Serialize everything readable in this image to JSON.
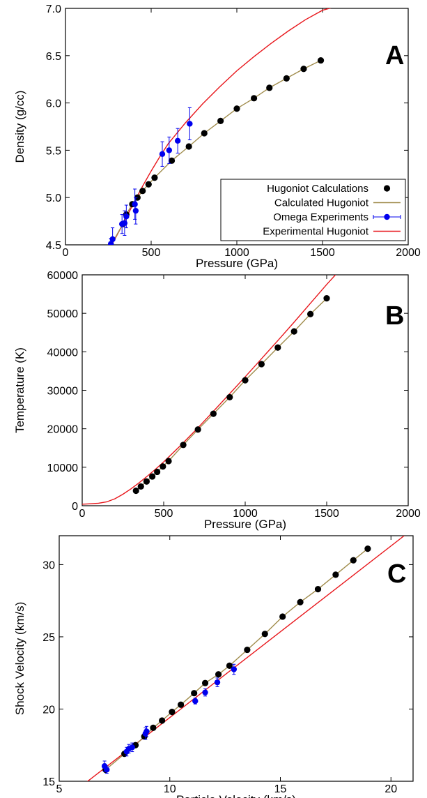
{
  "chart_data": [
    {
      "type": "scatter",
      "panel_label": "A",
      "xlabel": "Pressure (GPa)",
      "ylabel": "Density (g/cc)",
      "xlim": [
        0,
        2000
      ],
      "ylim": [
        4.5,
        7.0
      ],
      "xticks": [
        "0",
        "500",
        "1000",
        "1500",
        "2000"
      ],
      "yticks": [
        "4.5",
        "5.0",
        "5.5",
        "6.0",
        "6.5",
        "7.0"
      ],
      "legend_position": "lower-right",
      "series": [
        {
          "name": "Hugoniot Calculations",
          "style": "markers",
          "color": "#000000",
          "x": [
            335,
            355,
            390,
            420,
            450,
            485,
            520,
            620,
            720,
            810,
            905,
            1000,
            1100,
            1190,
            1290,
            1390,
            1490
          ],
          "y": [
            4.72,
            4.82,
            4.93,
            5.0,
            5.07,
            5.14,
            5.21,
            5.39,
            5.54,
            5.68,
            5.81,
            5.94,
            6.05,
            6.16,
            6.26,
            6.36,
            6.45
          ]
        },
        {
          "name": "Calculated Hugoniot",
          "style": "line",
          "color": "#a08c4c",
          "x": [
            270,
            335,
            355,
            390,
            420,
            450,
            485,
            520,
            620,
            720,
            810,
            905,
            1000,
            1100,
            1190,
            1290,
            1390,
            1490
          ],
          "y": [
            4.51,
            4.72,
            4.82,
            4.93,
            5.0,
            5.07,
            5.14,
            5.21,
            5.39,
            5.54,
            5.68,
            5.81,
            5.94,
            6.05,
            6.16,
            6.26,
            6.36,
            6.45
          ]
        },
        {
          "name": "Omega Experiments",
          "style": "errorbar",
          "color": "#0000ee",
          "x": [
            265,
            275,
            330,
            345,
            355,
            405,
            410,
            565,
            605,
            655,
            725
          ],
          "y": [
            4.51,
            4.56,
            4.72,
            4.73,
            4.8,
            4.93,
            4.86,
            5.46,
            5.5,
            5.6,
            5.78
          ],
          "yerr": [
            0.06,
            0.12,
            0.1,
            0.13,
            0.12,
            0.16,
            0.14,
            0.13,
            0.14,
            0.13,
            0.17
          ]
        },
        {
          "name": "Experimental Hugoniot",
          "style": "line",
          "color": "#e8161b",
          "x": [
            270,
            300,
            350,
            400,
            450,
            500,
            550,
            600,
            700,
            800,
            900,
            1000,
            1100,
            1200,
            1300,
            1400,
            1500,
            1580
          ],
          "y": [
            4.5,
            4.6,
            4.77,
            4.95,
            5.12,
            5.28,
            5.43,
            5.57,
            5.79,
            5.99,
            6.17,
            6.34,
            6.49,
            6.63,
            6.76,
            6.88,
            6.98,
            7.02
          ]
        }
      ]
    },
    {
      "type": "scatter",
      "panel_label": "B",
      "xlabel": "Pressure (GPa)",
      "ylabel": "Temperature (K)",
      "xlim": [
        0,
        2000
      ],
      "ylim": [
        0,
        60000
      ],
      "xticks": [
        "0",
        "500",
        "1000",
        "1500",
        "2000"
      ],
      "yticks": [
        "0",
        "10000",
        "20000",
        "30000",
        "40000",
        "50000",
        "60000"
      ],
      "series": [
        {
          "name": "Hugoniot Calculations",
          "style": "markers",
          "color": "#000000",
          "x": [
            330,
            360,
            395,
            430,
            460,
            495,
            530,
            620,
            710,
            805,
            905,
            1000,
            1100,
            1200,
            1300,
            1400,
            1500
          ],
          "y": [
            3900,
            5000,
            6300,
            7600,
            8800,
            10200,
            11600,
            15800,
            19800,
            23900,
            28200,
            32600,
            36800,
            41100,
            45300,
            49800,
            53900
          ]
        },
        {
          "name": "Calculated Hugoniot",
          "style": "line",
          "color": "#a08c4c",
          "x": [
            330,
            360,
            395,
            430,
            460,
            495,
            530,
            620,
            710,
            805,
            905,
            1000,
            1100,
            1200,
            1300,
            1400,
            1500
          ],
          "y": [
            3900,
            5000,
            6300,
            7600,
            8800,
            10200,
            11600,
            15800,
            19800,
            23900,
            28200,
            32600,
            36800,
            41100,
            45300,
            49800,
            53900
          ]
        },
        {
          "name": "Experimental Hugoniot",
          "style": "line",
          "color": "#e8161b",
          "x": [
            0,
            50,
            100,
            150,
            200,
            250,
            300,
            350,
            400,
            450,
            500,
            600,
            700,
            800,
            900,
            1000,
            1100,
            1200,
            1300,
            1400,
            1500,
            1565
          ],
          "y": [
            400,
            500,
            650,
            1000,
            1800,
            3000,
            4400,
            6000,
            7700,
            9500,
            11400,
            15500,
            19800,
            24300,
            28900,
            33500,
            38200,
            42900,
            47700,
            52600,
            57500,
            60500
          ]
        }
      ]
    },
    {
      "type": "scatter",
      "panel_label": "C",
      "xlabel": "Particle Velocity (km/s)",
      "ylabel": "Shock Velocity (km/s)",
      "xlim": [
        5,
        21
      ],
      "ylim": [
        15,
        32
      ],
      "xticks": [
        "5",
        "10",
        "15",
        "20"
      ],
      "yticks": [
        "15",
        "20",
        "25",
        "30"
      ],
      "series": [
        {
          "name": "Hugoniot Calculations",
          "style": "markers",
          "color": "#000000",
          "x": [
            7.1,
            7.95,
            8.45,
            8.85,
            9.25,
            9.65,
            10.1,
            10.5,
            11.1,
            11.6,
            12.2,
            12.7,
            13.5,
            14.3,
            15.1,
            15.9,
            16.7,
            17.5,
            18.3,
            18.95
          ],
          "y": [
            15.8,
            16.9,
            17.5,
            18.1,
            18.7,
            19.2,
            19.8,
            20.3,
            21.1,
            21.8,
            22.4,
            23.0,
            24.1,
            25.2,
            26.4,
            27.4,
            28.3,
            29.3,
            30.3,
            31.1
          ]
        },
        {
          "name": "Calculated Hugoniot",
          "style": "line",
          "color": "#a08c4c",
          "x": [
            7.1,
            7.95,
            8.45,
            8.85,
            9.25,
            9.65,
            10.1,
            10.5,
            11.1,
            11.6,
            12.2,
            12.7,
            13.5,
            14.3,
            15.1,
            15.9,
            16.7,
            17.5,
            18.3,
            18.95
          ],
          "y": [
            15.8,
            16.9,
            17.5,
            18.1,
            18.7,
            19.2,
            19.8,
            20.3,
            21.1,
            21.8,
            22.4,
            23.0,
            24.1,
            25.2,
            26.4,
            27.4,
            28.3,
            29.3,
            30.3,
            31.1
          ]
        },
        {
          "name": "Omega Experiments",
          "style": "errorbar",
          "color": "#0000ee",
          "x": [
            7.05,
            7.15,
            8.05,
            8.15,
            8.3,
            8.95,
            8.9,
            11.15,
            11.6,
            12.15,
            12.9
          ],
          "y": [
            16.05,
            15.8,
            17.05,
            17.25,
            17.35,
            18.45,
            18.3,
            20.55,
            21.15,
            21.85,
            22.75
          ],
          "yerr": [
            0.35,
            0.25,
            0.3,
            0.3,
            0.3,
            0.35,
            0.4,
            0.2,
            0.25,
            0.3,
            0.35
          ]
        },
        {
          "name": "Experimental Hugoniot",
          "style": "line",
          "color": "#e8161b",
          "x": [
            6.2,
            20.6
          ],
          "y": [
            14.9,
            32.0
          ]
        }
      ]
    }
  ]
}
